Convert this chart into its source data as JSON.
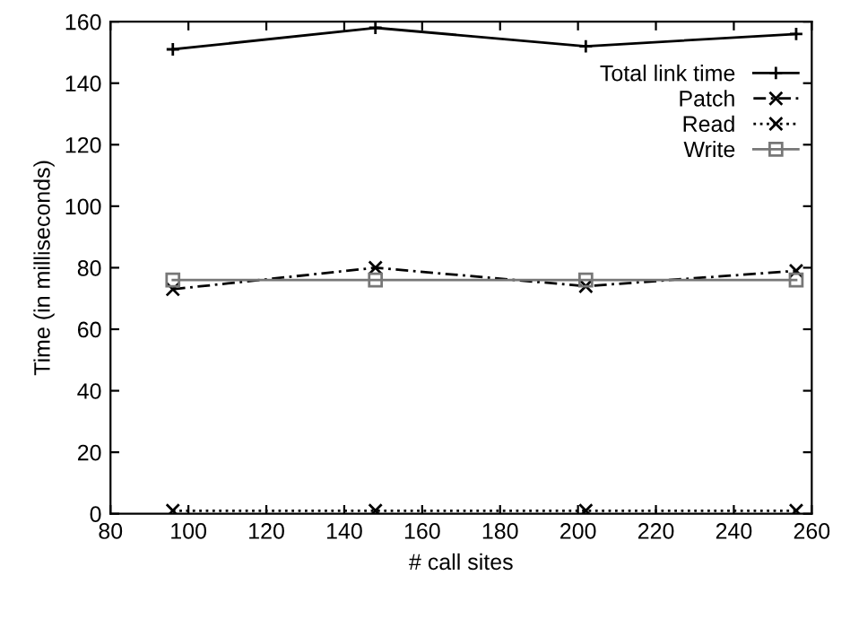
{
  "chart_data": {
    "type": "line",
    "xlabel": "# call sites",
    "ylabel": "Time (in milliseconds)",
    "x": [
      96,
      148,
      202,
      256
    ],
    "series": [
      {
        "name": "Total link time",
        "color": "#000000",
        "values": [
          151,
          158,
          152,
          156
        ],
        "marker": "cross",
        "line_style": "solid"
      },
      {
        "name": "Patch",
        "color": "#000000",
        "values": [
          73,
          80,
          74,
          79
        ],
        "marker": "x",
        "line_style": "dashed"
      },
      {
        "name": "Read",
        "color": "#000000",
        "values": [
          1,
          1,
          1,
          1
        ],
        "marker": "x",
        "line_style": "dotted"
      },
      {
        "name": "Write",
        "color": "#777777",
        "values": [
          76,
          76,
          76,
          76
        ],
        "marker": "square",
        "line_style": "solid"
      }
    ],
    "xlim": [
      80,
      260
    ],
    "xticks": [
      80,
      100,
      120,
      140,
      160,
      180,
      200,
      220,
      240,
      260
    ],
    "ylim": [
      0,
      160
    ],
    "yticks": [
      0,
      20,
      40,
      60,
      80,
      100,
      120,
      140,
      160
    ],
    "grid": false,
    "legend": "top right"
  }
}
